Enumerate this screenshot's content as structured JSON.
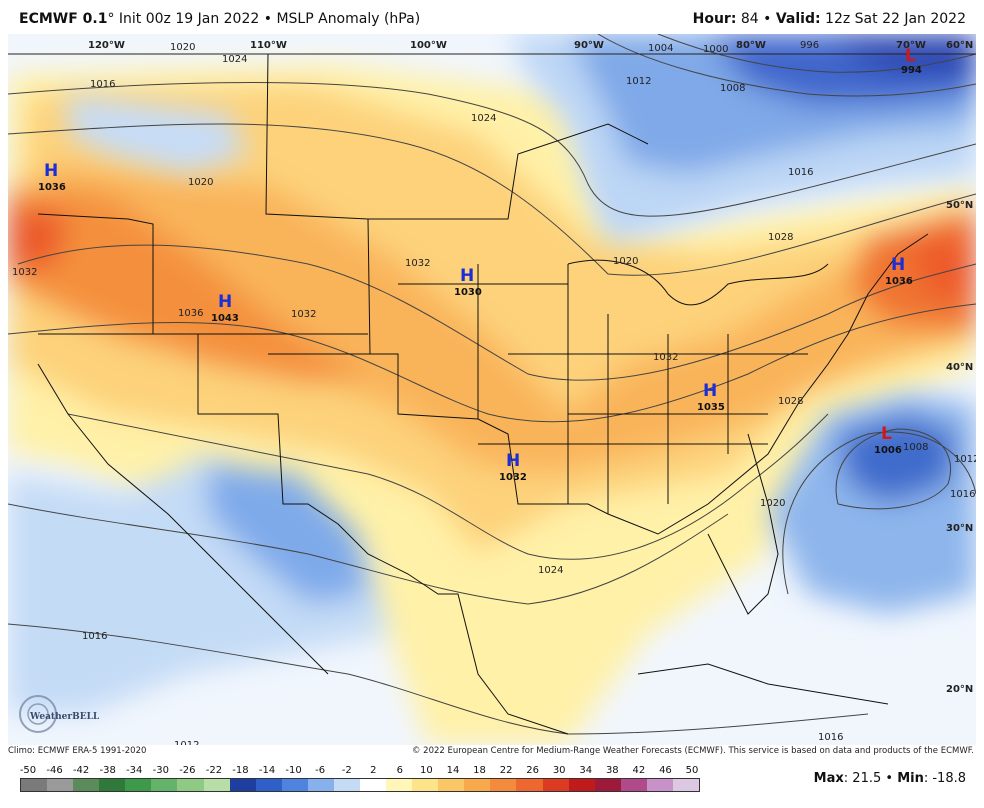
{
  "header": {
    "model": "ECMWF 0.1",
    "deg": "°",
    "init": " Init 00z 19 Jan 2022",
    "sep": " • ",
    "product": "MSLP Anomaly (hPa)",
    "hour_label": "Hour:",
    "hour_value": " 84",
    "valid_label": "Valid:",
    "valid_value": " 12z Sat 22 Jan 2022"
  },
  "footer": {
    "climo": "Climo: ECMWF ERA-5 1991-2020",
    "copyright": "© 2022 European Centre for Medium-Range Weather Forecasts (ECMWF). This service is based on data and products of the ECMWF.",
    "logo": "WeatherBELL"
  },
  "colorbar": {
    "labels": [
      "-50",
      "-46",
      "-42",
      "-38",
      "-34",
      "-30",
      "-26",
      "-22",
      "-18",
      "-14",
      "-10",
      "-6",
      "-2",
      "2",
      "6",
      "10",
      "14",
      "18",
      "22",
      "26",
      "30",
      "34",
      "38",
      "42",
      "46",
      "50"
    ],
    "colors": [
      "#7a7a7a",
      "#9a9a9a",
      "#5b8a5b",
      "#2f7a3a",
      "#3d9a4a",
      "#63b36a",
      "#8fca84",
      "#b6dea6",
      "#1f3fa0",
      "#2f5fc8",
      "#4f83e0",
      "#86b1ec",
      "#c4dbf6",
      "#ffffff",
      "#fff6b8",
      "#fde38a",
      "#fbc766",
      "#f8a94c",
      "#f48a3c",
      "#ee6630",
      "#dd3a22",
      "#c01a1a",
      "#9e1a3a",
      "#b04a8a",
      "#c892c8",
      "#dcc8e2"
    ]
  },
  "stats": {
    "max_label": "Max",
    "max_value": ": 21.5",
    "sep": " • ",
    "min_label": "Min",
    "min_value": ": -18.8"
  },
  "systems": [
    {
      "type": "H",
      "value": "1036",
      "color": "#1a2fd6"
    },
    {
      "type": "H",
      "value": "1043",
      "color": "#1a2fd6"
    },
    {
      "type": "H",
      "value": "1030",
      "color": "#1a2fd6"
    },
    {
      "type": "H",
      "value": "1032",
      "color": "#1a2fd6"
    },
    {
      "type": "H",
      "value": "1035",
      "color": "#1a2fd6"
    },
    {
      "type": "H",
      "value": "1036",
      "color": "#1a2fd6"
    },
    {
      "type": "L",
      "value": "1006",
      "color": "#d01818"
    },
    {
      "type": "L",
      "value": "994",
      "color": "#d01818"
    }
  ],
  "isobar_labels": [
    "1020",
    "1024",
    "1016",
    "1020",
    "1032",
    "1036",
    "1032",
    "1032",
    "1024",
    "1012",
    "1004",
    "1000",
    "1008",
    "996",
    "1016",
    "1028",
    "1020",
    "1032",
    "1028",
    "1024",
    "1020",
    "1008",
    "1012",
    "1016",
    "1016",
    "1012",
    "1016"
  ],
  "longitudes": [
    "120°W",
    "110°W",
    "100°W",
    "90°W",
    "80°W",
    "70°W"
  ],
  "latitudes": [
    "60°N",
    "50°N",
    "40°N",
    "30°N",
    "20°N"
  ]
}
